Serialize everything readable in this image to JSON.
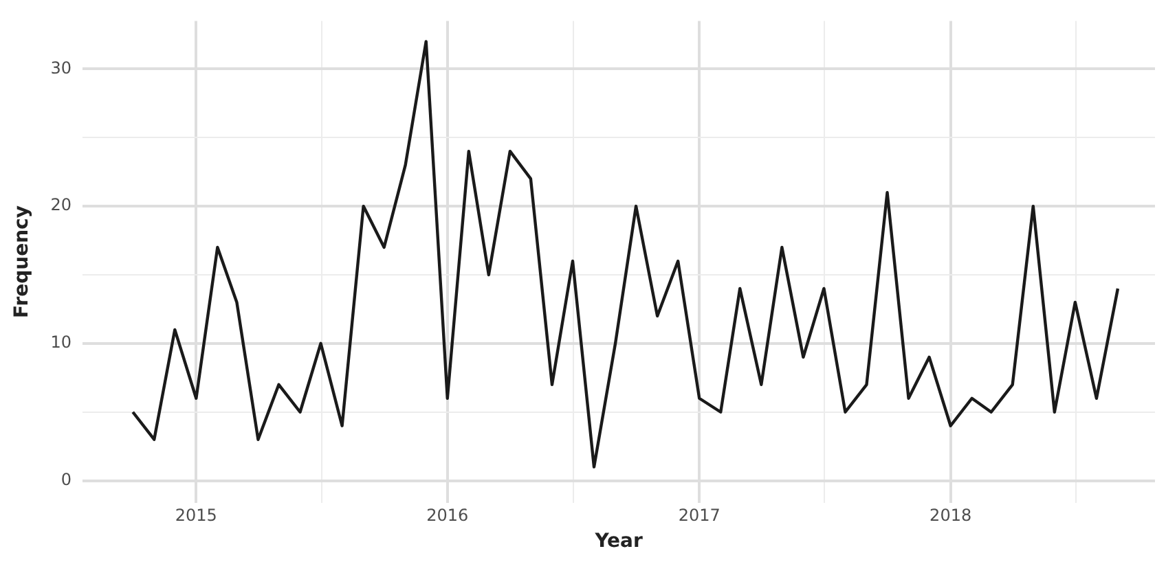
{
  "chart_data": {
    "type": "line",
    "xlabel": "Year",
    "ylabel": "Frequency",
    "x": [
      "2014-10",
      "2014-11",
      "2014-12",
      "2015-01",
      "2015-02",
      "2015-03",
      "2015-04",
      "2015-05",
      "2015-06",
      "2015-07",
      "2015-08",
      "2015-09",
      "2015-10",
      "2015-11",
      "2015-12",
      "2016-01",
      "2016-02",
      "2016-03",
      "2016-04",
      "2016-05",
      "2016-06",
      "2016-07",
      "2016-08",
      "2016-09",
      "2016-10",
      "2016-11",
      "2016-12",
      "2017-01",
      "2017-02",
      "2017-03",
      "2017-04",
      "2017-05",
      "2017-06",
      "2017-07",
      "2017-08",
      "2017-09",
      "2017-10",
      "2017-11",
      "2017-12",
      "2018-01",
      "2018-02",
      "2018-03",
      "2018-04",
      "2018-05",
      "2018-06",
      "2018-07",
      "2018-08",
      "2018-09"
    ],
    "series": [
      {
        "color": "#1a1a1a",
        "values": [
          5,
          3,
          11,
          6,
          17,
          13,
          3,
          7,
          5,
          10,
          4,
          20,
          17,
          23,
          32,
          6,
          24,
          15,
          24,
          22,
          7,
          16,
          1,
          10,
          20,
          12,
          16,
          6,
          5,
          14,
          7,
          17,
          9,
          14,
          5,
          7,
          21,
          6,
          9,
          4,
          6,
          5,
          7,
          20,
          5,
          13,
          6,
          14
        ]
      }
    ],
    "xlim": [
      "2014-07-20",
      "2018-10-25"
    ],
    "xticks": [
      {
        "value": "2015-01-01",
        "label": "2015"
      },
      {
        "value": "2015-07-02",
        "label": null
      },
      {
        "value": "2016-01-01",
        "label": "2016"
      },
      {
        "value": "2016-07-02",
        "label": null
      },
      {
        "value": "2017-01-01",
        "label": "2017"
      },
      {
        "value": "2017-07-02",
        "label": null
      },
      {
        "value": "2018-01-01",
        "label": "2018"
      },
      {
        "value": "2018-07-02",
        "label": null
      }
    ],
    "ylim": [
      -1.6,
      33.5
    ],
    "yticks": [
      0,
      {
        "value": 5,
        "label": null
      },
      10,
      {
        "value": 15,
        "label": null
      },
      20,
      {
        "value": 25,
        "label": null
      },
      30
    ],
    "grid": true,
    "legend": false,
    "marker": "none",
    "line_style": "solid"
  }
}
